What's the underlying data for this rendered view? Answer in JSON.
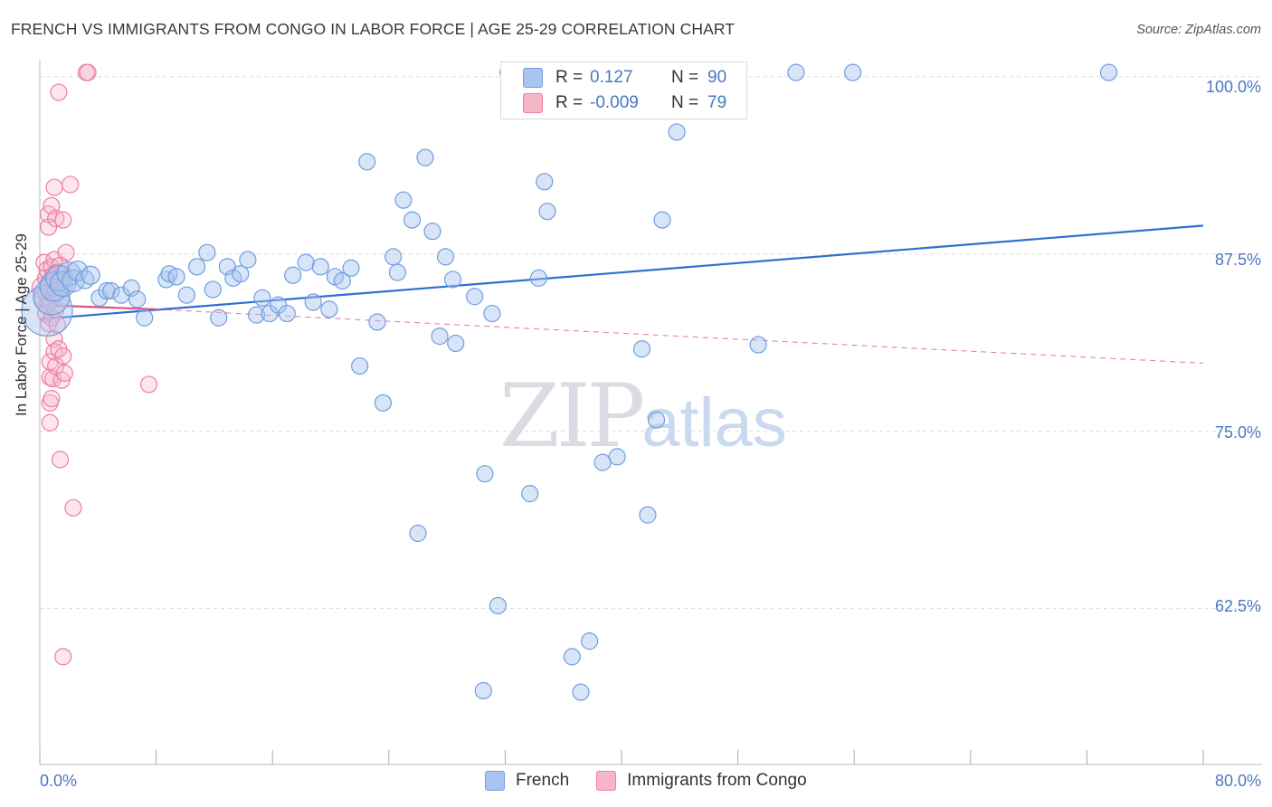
{
  "header": {
    "title": "FRENCH VS IMMIGRANTS FROM CONGO IN LABOR FORCE | AGE 25-29 CORRELATION CHART",
    "source": "Source: ZipAtlas.com"
  },
  "watermark": {
    "zip": "ZIP",
    "atlas": "atlas"
  },
  "legend": {
    "rows": [
      {
        "r_label": "R =",
        "r_value": "0.127",
        "n_label": "N =",
        "n_value": "90",
        "color": "#a8c4ef"
      },
      {
        "r_label": "R =",
        "r_value": "-0.009",
        "n_label": "N =",
        "n_value": "79",
        "color": "#f7b5c8"
      }
    ]
  },
  "bottom_legend": {
    "french": "French",
    "congo": "Immigrants from Congo"
  },
  "colors": {
    "french_fill": "#a8c4ef",
    "french_stroke": "#6f9ee0",
    "french_line": "#2f6fcf",
    "congo_fill": "#f7b5c8",
    "congo_stroke": "#ec7fa0",
    "congo_line": "#e0527e",
    "grid": "#dcdcdc"
  },
  "chart_data": {
    "type": "scatter",
    "title": "FRENCH VS IMMIGRANTS FROM CONGO IN LABOR FORCE | AGE 25-29 CORRELATION CHART",
    "xlabel": "",
    "ylabel": "In Labor Force | Age 25-29",
    "x_tick_labels": [
      "0.0%",
      "80.0%"
    ],
    "y_tick_labels": [
      "100.0%",
      "87.5%",
      "75.0%",
      "62.5%"
    ],
    "xlim": [
      0,
      80
    ],
    "ylim": [
      51.5,
      101.2
    ],
    "y_ticks": [
      100,
      87.5,
      75,
      62.5
    ],
    "series": [
      {
        "name": "French",
        "trend": {
          "x": [
            0,
            80
          ],
          "y": [
            82.9,
            89.5
          ],
          "style": "solid"
        },
        "points": [
          [
            0.5,
            83.5,
            28
          ],
          [
            0.8,
            84.5,
            20
          ],
          [
            1.0,
            85.2,
            16
          ],
          [
            1.3,
            85.8,
            14
          ],
          [
            1.6,
            85.4,
            14
          ],
          [
            2.0,
            86.1,
            13
          ],
          [
            2.3,
            85.6,
            12
          ],
          [
            2.6,
            86.3,
            11
          ],
          [
            3.1,
            85.7,
            10
          ],
          [
            3.5,
            86.0,
            10
          ],
          [
            4.1,
            84.4,
            9
          ],
          [
            4.6,
            84.9,
            9
          ],
          [
            4.9,
            84.9,
            9
          ],
          [
            5.6,
            84.6,
            9
          ],
          [
            6.3,
            85.1,
            9
          ],
          [
            6.7,
            84.3,
            9
          ],
          [
            7.2,
            83.0,
            9
          ],
          [
            8.7,
            85.7,
            9
          ],
          [
            8.9,
            86.1,
            9
          ],
          [
            9.4,
            85.9,
            9
          ],
          [
            10.1,
            84.6,
            9
          ],
          [
            10.8,
            86.6,
            9
          ],
          [
            11.5,
            87.6,
            9
          ],
          [
            11.9,
            85.0,
            9
          ],
          [
            12.3,
            83.0,
            9
          ],
          [
            12.9,
            86.6,
            9
          ],
          [
            13.3,
            85.8,
            9
          ],
          [
            13.8,
            86.1,
            9
          ],
          [
            14.3,
            87.1,
            9
          ],
          [
            14.9,
            83.2,
            9
          ],
          [
            15.3,
            84.4,
            9
          ],
          [
            15.8,
            83.3,
            9
          ],
          [
            16.4,
            83.9,
            9
          ],
          [
            17.0,
            83.3,
            9
          ],
          [
            17.4,
            86.0,
            9
          ],
          [
            18.3,
            86.9,
            9
          ],
          [
            18.8,
            84.1,
            9
          ],
          [
            19.3,
            86.6,
            9
          ],
          [
            19.9,
            83.6,
            9
          ],
          [
            20.3,
            85.9,
            9
          ],
          [
            20.8,
            85.6,
            9
          ],
          [
            21.4,
            86.5,
            9
          ],
          [
            22.0,
            79.6,
            9
          ],
          [
            22.5,
            94.0,
            9
          ],
          [
            23.2,
            82.7,
            9
          ],
          [
            23.6,
            77.0,
            9
          ],
          [
            24.3,
            87.3,
            9
          ],
          [
            24.6,
            86.2,
            9
          ],
          [
            25.0,
            91.3,
            9
          ],
          [
            25.6,
            89.9,
            9
          ],
          [
            26.0,
            67.8,
            9
          ],
          [
            26.5,
            94.3,
            9
          ],
          [
            27.0,
            89.1,
            9
          ],
          [
            27.5,
            81.7,
            9
          ],
          [
            27.9,
            87.3,
            9
          ],
          [
            28.4,
            85.7,
            9
          ],
          [
            28.6,
            81.2,
            9
          ],
          [
            29.9,
            84.5,
            9
          ],
          [
            30.5,
            56.7,
            9
          ],
          [
            30.6,
            72.0,
            9
          ],
          [
            31.1,
            83.3,
            9
          ],
          [
            31.5,
            62.7,
            9
          ],
          [
            32.2,
            100.3,
            9
          ],
          [
            33.7,
            70.6,
            9
          ],
          [
            34.3,
            85.8,
            9
          ],
          [
            34.7,
            92.6,
            9
          ],
          [
            34.9,
            90.5,
            9
          ],
          [
            36.6,
            59.1,
            9
          ],
          [
            37.1,
            100.3,
            9
          ],
          [
            37.2,
            56.6,
            9
          ],
          [
            37.8,
            60.2,
            9
          ],
          [
            38.7,
            72.8,
            9
          ],
          [
            39.7,
            73.2,
            9
          ],
          [
            40.3,
            100.3,
            9
          ],
          [
            41.4,
            80.8,
            9
          ],
          [
            41.8,
            69.1,
            9
          ],
          [
            42.4,
            75.8,
            9
          ],
          [
            42.8,
            89.9,
            9
          ],
          [
            43.3,
            100.3,
            9
          ],
          [
            43.8,
            96.1,
            9
          ],
          [
            44.6,
            100.3,
            9
          ],
          [
            49.4,
            81.1,
            9
          ],
          [
            52.0,
            100.3,
            9
          ],
          [
            55.9,
            100.3,
            9
          ],
          [
            73.5,
            100.3,
            9
          ]
        ]
      },
      {
        "name": "Immigrants from Congo",
        "trend": {
          "x": [
            0,
            8
          ],
          "y": [
            83.9,
            83.6
          ],
          "style": "solid",
          "extended": {
            "x": [
              8,
              80
            ],
            "y": [
              83.6,
              79.8
            ],
            "style": "dashed"
          }
        },
        "points": [
          [
            0.2,
            85.1,
            12
          ],
          [
            0.3,
            84.4,
            11
          ],
          [
            0.3,
            86.9,
            9
          ],
          [
            0.4,
            83.3,
            9
          ],
          [
            0.4,
            85.8,
            9
          ],
          [
            0.4,
            84.8,
            9
          ],
          [
            0.5,
            83.9,
            9
          ],
          [
            0.5,
            86.4,
            9
          ],
          [
            0.6,
            90.3,
            9
          ],
          [
            0.6,
            82.6,
            9
          ],
          [
            0.6,
            85.3,
            9
          ],
          [
            0.6,
            89.4,
            9
          ],
          [
            0.7,
            84.1,
            9
          ],
          [
            0.7,
            79.9,
            9
          ],
          [
            0.7,
            78.8,
            9
          ],
          [
            0.7,
            77.0,
            9
          ],
          [
            0.7,
            75.6,
            9
          ],
          [
            0.8,
            83.0,
            9
          ],
          [
            0.8,
            86.6,
            9
          ],
          [
            0.8,
            85.6,
            9
          ],
          [
            0.8,
            90.9,
            9
          ],
          [
            0.8,
            77.3,
            9
          ],
          [
            0.9,
            86.0,
            9
          ],
          [
            0.9,
            84.6,
            9
          ],
          [
            0.9,
            78.7,
            9
          ],
          [
            1.0,
            92.2,
            9
          ],
          [
            1.0,
            87.1,
            9
          ],
          [
            1.0,
            81.5,
            9
          ],
          [
            1.0,
            80.6,
            9
          ],
          [
            1.1,
            84.9,
            9
          ],
          [
            1.1,
            83.6,
            9
          ],
          [
            1.1,
            79.6,
            9
          ],
          [
            1.1,
            90.0,
            9
          ],
          [
            1.2,
            86.2,
            9
          ],
          [
            1.2,
            82.5,
            9
          ],
          [
            1.3,
            98.9,
            9
          ],
          [
            1.3,
            80.8,
            9
          ],
          [
            1.4,
            86.7,
            9
          ],
          [
            1.4,
            73.0,
            9
          ],
          [
            1.5,
            84.4,
            9
          ],
          [
            1.5,
            78.6,
            9
          ],
          [
            1.6,
            89.9,
            9
          ],
          [
            1.6,
            86.1,
            9
          ],
          [
            1.6,
            80.3,
            9
          ],
          [
            1.6,
            59.1,
            9
          ],
          [
            1.7,
            85.3,
            9
          ],
          [
            1.7,
            79.1,
            9
          ],
          [
            1.8,
            87.6,
            9
          ],
          [
            2.1,
            92.4,
            9
          ],
          [
            2.3,
            69.6,
            9
          ],
          [
            3.2,
            100.3,
            9
          ],
          [
            3.3,
            100.3,
            9
          ],
          [
            7.5,
            78.3,
            9
          ]
        ]
      }
    ]
  }
}
